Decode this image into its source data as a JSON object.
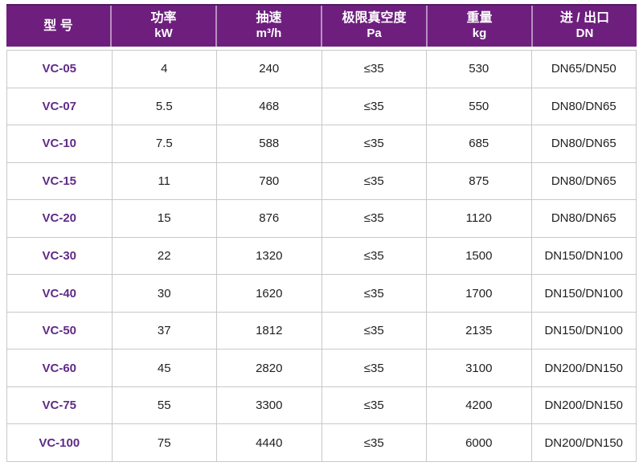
{
  "colors": {
    "header_bg": "#6E1F7E",
    "header_top_edge": "#541761",
    "header_text": "#FFFFFF",
    "header_divider": "rgba(255,255,255,0.5)",
    "model_text": "#5F2B87",
    "body_text": "#1F1F1F",
    "grid_border": "#C8C8C8"
  },
  "table": {
    "columns": [
      {
        "title": "型 号",
        "subtitle": ""
      },
      {
        "title": "功率",
        "subtitle": "kW"
      },
      {
        "title": "抽速",
        "subtitle": "m³/h"
      },
      {
        "title": "极限真空度",
        "subtitle": "Pa"
      },
      {
        "title": "重量",
        "subtitle": "kg"
      },
      {
        "title": "进 / 出口",
        "subtitle": "DN"
      }
    ],
    "rows": [
      {
        "model": "VC-05",
        "power": "4",
        "speed": "240",
        "vacuum": "≤35",
        "weight": "530",
        "port": "DN65/DN50"
      },
      {
        "model": "VC-07",
        "power": "5.5",
        "speed": "468",
        "vacuum": "≤35",
        "weight": "550",
        "port": "DN80/DN65"
      },
      {
        "model": "VC-10",
        "power": "7.5",
        "speed": "588",
        "vacuum": "≤35",
        "weight": "685",
        "port": "DN80/DN65"
      },
      {
        "model": "VC-15",
        "power": "11",
        "speed": "780",
        "vacuum": "≤35",
        "weight": "875",
        "port": "DN80/DN65"
      },
      {
        "model": "VC-20",
        "power": "15",
        "speed": "876",
        "vacuum": "≤35",
        "weight": "1120",
        "port": "DN80/DN65"
      },
      {
        "model": "VC-30",
        "power": "22",
        "speed": "1320",
        "vacuum": "≤35",
        "weight": "1500",
        "port": "DN150/DN100"
      },
      {
        "model": "VC-40",
        "power": "30",
        "speed": "1620",
        "vacuum": "≤35",
        "weight": "1700",
        "port": "DN150/DN100"
      },
      {
        "model": "VC-50",
        "power": "37",
        "speed": "1812",
        "vacuum": "≤35",
        "weight": "2135",
        "port": "DN150/DN100"
      },
      {
        "model": "VC-60",
        "power": "45",
        "speed": "2820",
        "vacuum": "≤35",
        "weight": "3100",
        "port": "DN200/DN150"
      },
      {
        "model": "VC-75",
        "power": "55",
        "speed": "3300",
        "vacuum": "≤35",
        "weight": "4200",
        "port": "DN200/DN150"
      },
      {
        "model": "VC-100",
        "power": "75",
        "speed": "4440",
        "vacuum": "≤35",
        "weight": "6000",
        "port": "DN200/DN150"
      }
    ]
  }
}
